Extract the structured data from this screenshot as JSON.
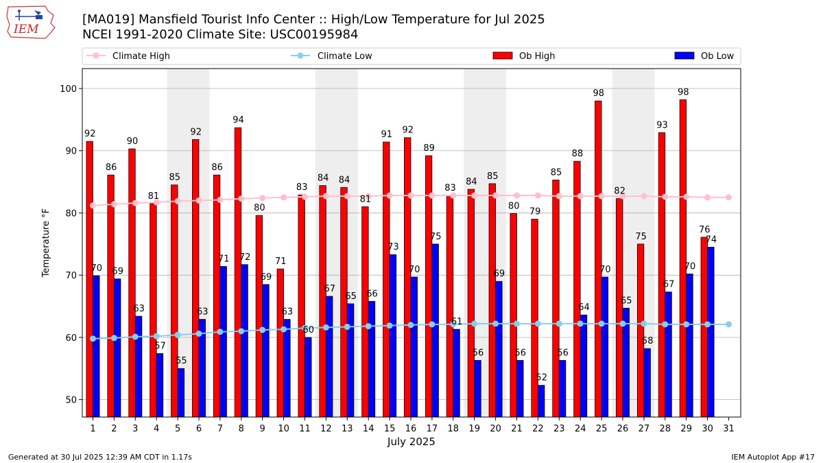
{
  "header": {
    "title_line1": "[MA019] Mansfield Tourist Info Center  :: High/Low Temperature for Jul 2025",
    "title_line2": "NCEI 1991-2020 Climate Site: USC00195984",
    "logo_text": "IEM"
  },
  "footer": {
    "generated": "Generated at 30 Jul 2025 12:39 AM CDT in 1.17s",
    "app": "IEM Autoplot App #17"
  },
  "colors": {
    "ob_high": "#ff0000",
    "ob_low": "#0000ff",
    "climate_high": "#ffc0cb",
    "climate_low": "#87ceeb",
    "weekend_shade": "#eeeeee",
    "grid": "#b0b0b0"
  },
  "chart_data": {
    "type": "bar",
    "xlabel": "July 2025",
    "ylabel": "Temperature °F",
    "ylim": [
      47.2,
      103.2
    ],
    "yticks": [
      50,
      60,
      70,
      80,
      90,
      100
    ],
    "grid": "horizontal",
    "legend_position": "top",
    "x": [
      1,
      2,
      3,
      4,
      5,
      6,
      7,
      8,
      9,
      10,
      11,
      12,
      13,
      14,
      15,
      16,
      17,
      18,
      19,
      20,
      21,
      22,
      23,
      24,
      25,
      26,
      27,
      28,
      29,
      30,
      31
    ],
    "shaded_days": [
      [
        5,
        6
      ],
      [
        12,
        13
      ],
      [
        19,
        20
      ],
      [
        26,
        27
      ]
    ],
    "series": [
      {
        "name": "Climate High",
        "kind": "line",
        "values": [
          81.2,
          81.4,
          81.6,
          81.7,
          81.9,
          82.0,
          82.1,
          82.3,
          82.4,
          82.5,
          82.6,
          82.7,
          82.7,
          82.7,
          82.8,
          82.8,
          82.8,
          82.8,
          82.8,
          82.8,
          82.8,
          82.8,
          82.7,
          82.7,
          82.7,
          82.7,
          82.7,
          82.6,
          82.6,
          82.5,
          82.5
        ]
      },
      {
        "name": "Climate Low",
        "kind": "line",
        "values": [
          59.8,
          59.9,
          60.1,
          60.2,
          60.4,
          60.6,
          60.9,
          61.0,
          61.2,
          61.3,
          61.5,
          61.6,
          61.7,
          61.8,
          61.9,
          62.0,
          62.1,
          62.1,
          62.2,
          62.2,
          62.2,
          62.2,
          62.2,
          62.2,
          62.2,
          62.2,
          62.2,
          62.1,
          62.1,
          62.1,
          62.1
        ]
      },
      {
        "name": "Ob High",
        "kind": "bar",
        "values": [
          91.5,
          86.1,
          90.3,
          81.5,
          84.5,
          91.8,
          86.1,
          93.7,
          79.6,
          71.0,
          82.9,
          84.4,
          84.1,
          81.0,
          91.4,
          92.1,
          89.2,
          82.8,
          83.8,
          84.7,
          79.9,
          79.0,
          85.3,
          88.3,
          98.0,
          82.3,
          75.0,
          92.9,
          98.2,
          76.1,
          null
        ],
        "labels": [
          "92",
          "86",
          "90",
          "81",
          "85",
          "92",
          "86",
          "94",
          "80",
          "71",
          "83",
          "84",
          "84",
          "81",
          "91",
          "92",
          "89",
          "83",
          "84",
          "85",
          "80",
          "79",
          "85",
          "88",
          "98",
          "82",
          "75",
          "93",
          "98",
          "76",
          ""
        ]
      },
      {
        "name": "Ob Low",
        "kind": "bar",
        "values": [
          69.9,
          69.4,
          63.4,
          57.4,
          55.0,
          62.9,
          71.4,
          71.7,
          68.5,
          62.9,
          60.0,
          66.6,
          65.4,
          65.8,
          73.3,
          69.7,
          75.0,
          61.3,
          56.3,
          69.0,
          56.3,
          52.3,
          56.3,
          63.6,
          69.7,
          64.7,
          58.2,
          67.3,
          70.2,
          74.5,
          null
        ],
        "labels": [
          "70",
          "69",
          "63",
          "57",
          "55",
          "63",
          "71",
          "72",
          "69",
          "63",
          "60",
          "67",
          "65",
          "66",
          "73",
          "70",
          "75",
          "61",
          "56",
          "69",
          "56",
          "52",
          "56",
          "64",
          "70",
          "65",
          "58",
          "67",
          "70",
          "74",
          ""
        ]
      }
    ]
  }
}
